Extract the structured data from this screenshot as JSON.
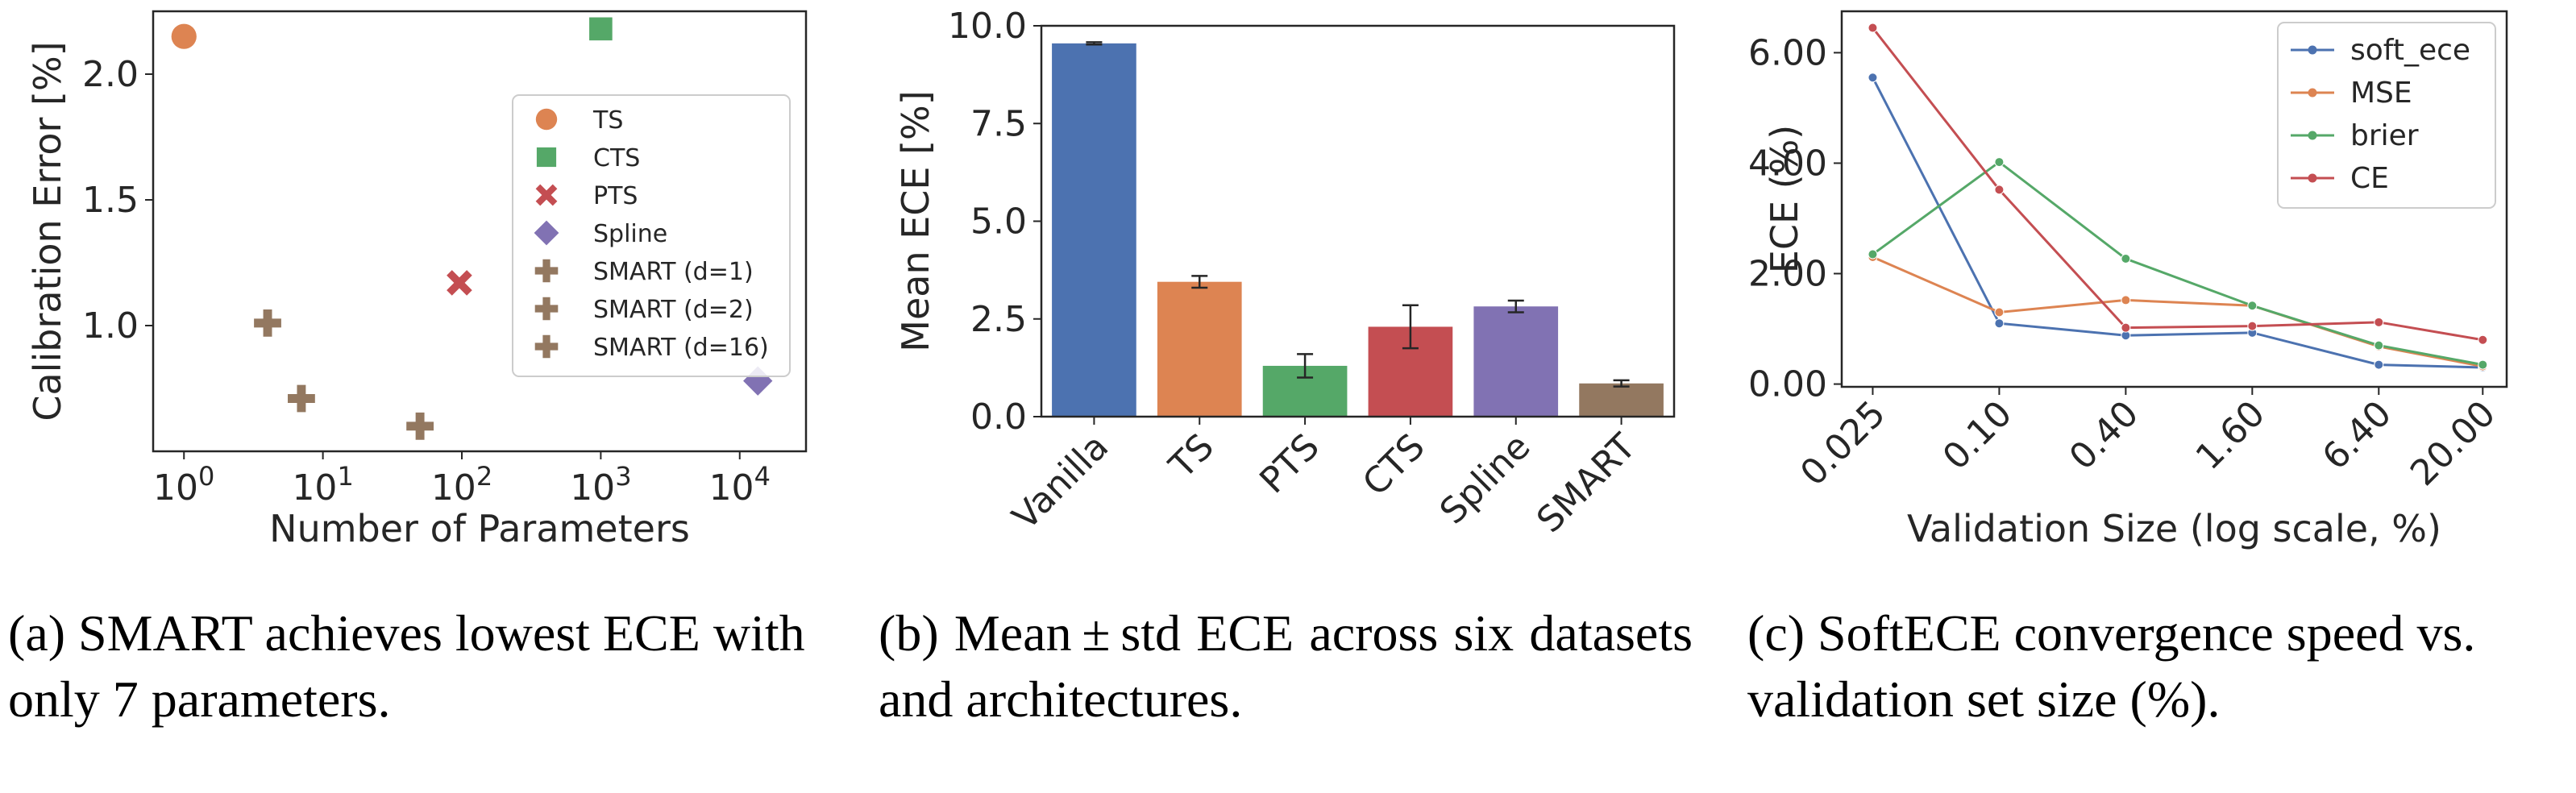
{
  "chart_data": [
    {
      "type": "scatter",
      "title": "",
      "xlabel": "Number of Parameters",
      "ylabel": "Calibration Error [%]",
      "xscale": "log",
      "xlim": [
        0.6,
        30000
      ],
      "ylim": [
        0.5,
        2.25
      ],
      "xticks": [
        {
          "value": 1,
          "base": "10",
          "exp": "0"
        },
        {
          "value": 10,
          "base": "10",
          "exp": "1"
        },
        {
          "value": 100,
          "base": "10",
          "exp": "2"
        },
        {
          "value": 1000,
          "base": "10",
          "exp": "3"
        },
        {
          "value": 10000,
          "base": "10",
          "exp": "4"
        }
      ],
      "yticks": [
        1.0,
        1.5,
        2.0
      ],
      "ytick_labels": [
        "1.0",
        "1.5",
        "2.0"
      ],
      "legend_position": "center-right",
      "series": [
        {
          "name": "TS",
          "marker": "circle",
          "color": "#dd8452",
          "points": [
            [
              1,
              2.15
            ]
          ]
        },
        {
          "name": "CTS",
          "marker": "square",
          "color": "#55a868",
          "points": [
            [
              1000,
              2.18
            ]
          ]
        },
        {
          "name": "PTS",
          "marker": "x",
          "color": "#c44e52",
          "points": [
            [
              96,
              1.17
            ]
          ]
        },
        {
          "name": "Spline",
          "marker": "diamond",
          "color": "#8172b3",
          "points": [
            [
              13500,
              0.78
            ]
          ]
        },
        {
          "name": "SMART (d=1)",
          "marker": "plus",
          "color": "#937860",
          "points": [
            [
              4,
              1.01
            ]
          ]
        },
        {
          "name": "SMART (d=2)",
          "marker": "plus",
          "color": "#937860",
          "points": [
            [
              7,
              0.71
            ]
          ]
        },
        {
          "name": "SMART (d=16)",
          "marker": "plus",
          "color": "#937860",
          "points": [
            [
              50,
              0.6
            ]
          ]
        }
      ]
    },
    {
      "type": "bar",
      "title": "",
      "xlabel": "",
      "ylabel": "Mean ECE [%]",
      "ylim": [
        0,
        10
      ],
      "yticks": [
        0.0,
        2.5,
        5.0,
        7.5,
        10.0
      ],
      "ytick_labels": [
        "0.0",
        "2.5",
        "5.0",
        "7.5",
        "10.0"
      ],
      "categories": [
        "Vanilla",
        "TS",
        "PTS",
        "CTS",
        "Spline",
        "SMART"
      ],
      "values": [
        9.55,
        3.45,
        1.3,
        2.3,
        2.82,
        0.85
      ],
      "errors": [
        0.03,
        0.15,
        0.3,
        0.55,
        0.15,
        0.08
      ],
      "colors": [
        "#4c72b0",
        "#dd8452",
        "#55a868",
        "#c44e52",
        "#8172b3",
        "#937860"
      ]
    },
    {
      "type": "line",
      "title": "",
      "xlabel": "Validation Size (log scale, %)",
      "ylabel": "ECE (%)",
      "xscale": "log",
      "x": [
        0.025,
        0.1,
        0.4,
        1.6,
        6.4,
        20.0
      ],
      "x_labels": [
        "0.025",
        "0.10",
        "0.40",
        "1.60",
        "6.40",
        "20.00"
      ],
      "xlim": [
        0.0178,
        26
      ],
      "ylim": [
        -0.05,
        6.75
      ],
      "yticks": [
        0,
        2,
        4,
        6
      ],
      "ytick_labels": [
        "0.00",
        "2.00",
        "4.00",
        "6.00"
      ],
      "legend_position": "top-right",
      "series": [
        {
          "name": "soft_ece",
          "color": "#4c72b0",
          "values": [
            5.55,
            1.1,
            0.88,
            0.93,
            0.35,
            0.3
          ]
        },
        {
          "name": "MSE",
          "color": "#dd8452",
          "values": [
            2.3,
            1.3,
            1.52,
            1.42,
            0.68,
            0.32
          ]
        },
        {
          "name": "brier",
          "color": "#55a868",
          "values": [
            2.35,
            4.02,
            2.27,
            1.42,
            0.7,
            0.35
          ]
        },
        {
          "name": "CE",
          "color": "#c44e52",
          "values": [
            6.45,
            3.52,
            1.02,
            1.05,
            1.12,
            0.8
          ]
        }
      ]
    }
  ],
  "captions": [
    "(a) SMART achieves lowest ECE with only 7 parameters.",
    "(b) Mean ± std ECE across six datasets and architectures.",
    "(c) SoftECE convergence speed vs. validation set size (%)."
  ]
}
